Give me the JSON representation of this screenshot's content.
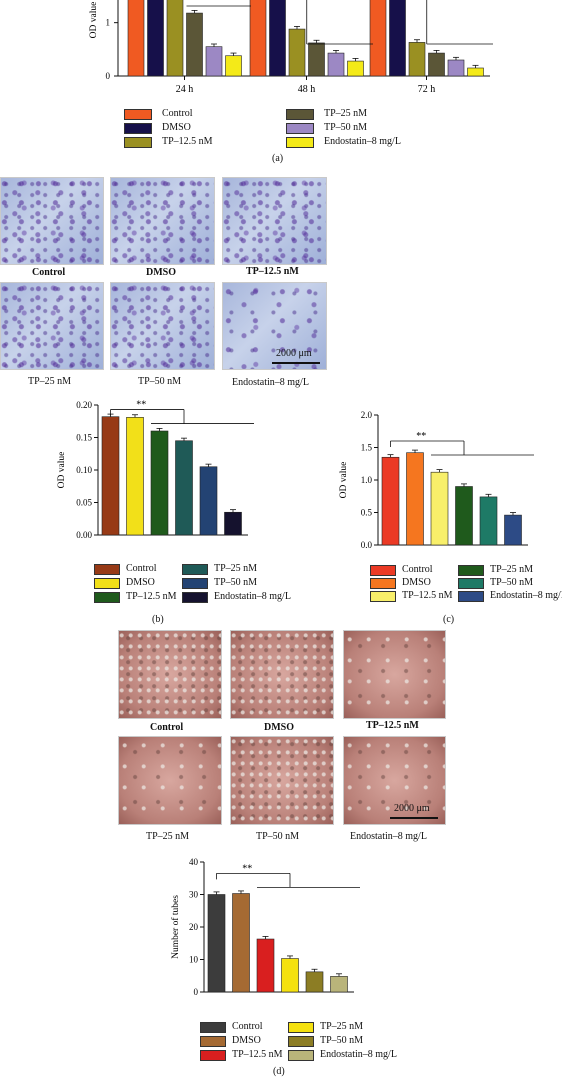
{
  "panel_a": {
    "caption": "(a)",
    "chart_data": {
      "type": "bar",
      "ylabel": "OD value",
      "yticks": [
        "1",
        "0"
      ],
      "categories": [
        "24 h",
        "48 h",
        "72 h"
      ],
      "series": [
        {
          "name": "Control",
          "color": "#f05a22",
          "values": [
            2.1,
            2.1,
            2.1
          ]
        },
        {
          "name": "DMSO",
          "color": "#16104a",
          "values": [
            2.1,
            2.1,
            2.1
          ]
        },
        {
          "name": "TP–12.5 nM",
          "color": "#9a9022",
          "values": [
            1.62,
            0.88,
            0.63
          ]
        },
        {
          "name": "TP–25 nM",
          "color": "#5b5637",
          "values": [
            1.18,
            0.62,
            0.43
          ]
        },
        {
          "name": "TP–50 nM",
          "color": "#9c88c4",
          "values": [
            0.55,
            0.43,
            0.3
          ]
        },
        {
          "name": "Endostatin–8 mg/L",
          "color": "#f4ea18",
          "values": [
            0.38,
            0.28,
            0.15
          ]
        }
      ],
      "ylim": [
        0,
        1.8
      ]
    }
  },
  "panel_b": {
    "images": [
      "Control",
      "DMSO",
      "TP–12.5 nM",
      "TP–25 nM",
      "TP–50 nM",
      "Endostatin–8 mg/L"
    ],
    "scale_bar": "2000 μm",
    "caption": "(b)",
    "significance": "**",
    "chart_data": {
      "type": "bar",
      "ylabel": "OD value",
      "yticks": [
        "0.00",
        "0.05",
        "0.10",
        "0.15",
        "0.20"
      ],
      "ylim": [
        0,
        0.2
      ],
      "categories": [
        "Control",
        "DMSO",
        "TP–12.5 nM",
        "TP–25 nM",
        "TP–50 nM",
        "Endostatin–8 mg/L"
      ],
      "values": [
        0.182,
        0.181,
        0.16,
        0.145,
        0.105,
        0.035
      ],
      "colors": [
        "#973a16",
        "#f2e019",
        "#1f5a1c",
        "#1f5a57",
        "#234373",
        "#15122e"
      ]
    }
  },
  "panel_c": {
    "caption": "(c)",
    "significance": "**",
    "chart_data": {
      "type": "bar",
      "ylabel": "OD value",
      "yticks": [
        "0.0",
        "0.5",
        "1.0",
        "1.5",
        "2.0"
      ],
      "ylim": [
        0,
        2.0
      ],
      "categories": [
        "Control",
        "DMSO",
        "TP–12.5 nM",
        "TP–25 nM",
        "TP–50 nM",
        "Endostatin–8 mg/L"
      ],
      "values": [
        1.35,
        1.42,
        1.12,
        0.9,
        0.74,
        0.46
      ],
      "colors": [
        "#eb3a25",
        "#f5761f",
        "#f8ef6a",
        "#1f5a1c",
        "#1e7a66",
        "#2d4b86"
      ]
    }
  },
  "panel_d": {
    "images": [
      "Control",
      "DMSO",
      "TP–12.5 nM",
      "TP–25 nM",
      "TP–50 nM",
      "Endostatin–8 mg/L"
    ],
    "scale_bar": "2000 μm",
    "caption": "(d)",
    "significance": "**",
    "chart_data": {
      "type": "bar",
      "ylabel": "Number of tubes",
      "yticks": [
        "0",
        "10",
        "20",
        "30",
        "40"
      ],
      "ylim": [
        0,
        40
      ],
      "categories": [
        "Control",
        "DMSO",
        "TP–12.5 nM",
        "TP–25 nM",
        "TP–50 nM",
        "Endostatin–8 mg/L"
      ],
      "values": [
        30,
        30.3,
        16.3,
        10.3,
        6.2,
        4.8
      ],
      "colors": [
        "#3c3c3c",
        "#a56a33",
        "#d91f1f",
        "#f5e10f",
        "#8c7d24",
        "#b9b47a"
      ]
    }
  }
}
